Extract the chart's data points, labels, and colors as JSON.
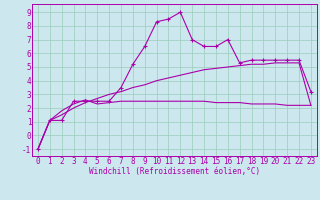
{
  "xlabel": "Windchill (Refroidissement éolien,°C)",
  "background_color": "#cce8ee",
  "grid_color": "#99ccbb",
  "line_color": "#aa00aa",
  "x_ticks": [
    0,
    1,
    2,
    3,
    4,
    5,
    6,
    7,
    8,
    9,
    10,
    11,
    12,
    13,
    14,
    15,
    16,
    17,
    18,
    19,
    20,
    21,
    22,
    23
  ],
  "y_ticks": [
    -1,
    0,
    1,
    2,
    3,
    4,
    5,
    6,
    7,
    8,
    9
  ],
  "ylim": [
    -1.5,
    9.6
  ],
  "xlim": [
    -0.5,
    23.5
  ],
  "series1_x": [
    0,
    1,
    2,
    3,
    4,
    5,
    6,
    7,
    8,
    9,
    10,
    11,
    12,
    13,
    14,
    15,
    16,
    17,
    18,
    19,
    20,
    21,
    22,
    23
  ],
  "series1_y": [
    -1.0,
    1.1,
    1.1,
    2.5,
    2.5,
    2.5,
    2.5,
    3.5,
    5.2,
    6.5,
    8.3,
    8.5,
    9.0,
    7.0,
    6.5,
    6.5,
    7.0,
    5.3,
    5.5,
    5.5,
    5.5,
    5.5,
    5.5,
    3.2
  ],
  "series2_x": [
    0,
    1,
    2,
    3,
    4,
    5,
    6,
    7,
    8,
    9,
    10,
    11,
    12,
    13,
    14,
    15,
    16,
    17,
    18,
    19,
    20,
    21,
    22,
    23
  ],
  "series2_y": [
    -1.0,
    1.1,
    1.8,
    2.3,
    2.6,
    2.3,
    2.4,
    2.5,
    2.5,
    2.5,
    2.5,
    2.5,
    2.5,
    2.5,
    2.5,
    2.4,
    2.4,
    2.4,
    2.3,
    2.3,
    2.3,
    2.2,
    2.2,
    2.2
  ],
  "series3_x": [
    0,
    1,
    2,
    3,
    4,
    5,
    6,
    7,
    8,
    9,
    10,
    11,
    12,
    13,
    14,
    15,
    16,
    17,
    18,
    19,
    20,
    21,
    22,
    23
  ],
  "series3_y": [
    -1.0,
    1.1,
    1.5,
    2.0,
    2.4,
    2.7,
    3.0,
    3.2,
    3.5,
    3.7,
    4.0,
    4.2,
    4.4,
    4.6,
    4.8,
    4.9,
    5.0,
    5.1,
    5.2,
    5.2,
    5.3,
    5.3,
    5.3,
    2.2
  ],
  "spine_color": "#aa00aa",
  "tick_fontsize": 5.5,
  "xlabel_fontsize": 5.5
}
